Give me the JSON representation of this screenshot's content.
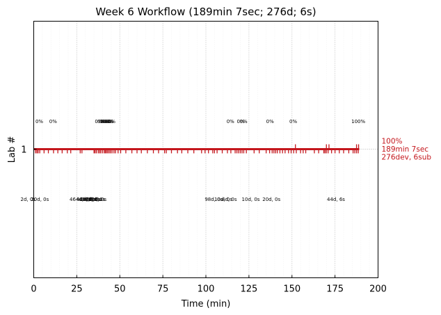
{
  "chart_data": {
    "type": "scatter",
    "title": "Week 6 Workflow (189min 7sec; 276d; 6s)",
    "xlabel": "Time (min)",
    "ylabel": "Lab #",
    "xlim": [
      0,
      200
    ],
    "x_ticks": [
      "0",
      "25",
      "50",
      "75",
      "100",
      "125",
      "150",
      "175",
      "200"
    ],
    "y_ticks": [
      "1"
    ],
    "grid": "vertical dotted every 25 min, faint minor lines every 5 min",
    "colors": {
      "series": "#c4161c",
      "grid": "#b0b0b0",
      "minor_grid": "#ececec"
    },
    "series": [
      {
        "lab": 1,
        "duration_min": 189.1,
        "dev_event_times": [
          1,
          1.8,
          2.5,
          3.5,
          6,
          8.5,
          11.5,
          14,
          16.5,
          19.5,
          21.5,
          27,
          28,
          35,
          35.6,
          36.4,
          37.5,
          38.3,
          39,
          40,
          41,
          41.6,
          42.3,
          43,
          43.8,
          44.6,
          45.5,
          46.6,
          47.5,
          49,
          50.5,
          53.5,
          57,
          60,
          62.5,
          66,
          69.5,
          72.5,
          76,
          77,
          80,
          83.5,
          86,
          89.5,
          93,
          97.5,
          99.5,
          101.5,
          104,
          105,
          106.5,
          109.5,
          112.5,
          114.5,
          117,
          118,
          119,
          120,
          121,
          122,
          123.5,
          128,
          131,
          135,
          137,
          138.5,
          139.5,
          140.5,
          141.5,
          143,
          144.5,
          146,
          148,
          149.5,
          151,
          152.5,
          155,
          156.5,
          158,
          163,
          165.5,
          168.5,
          169.2,
          170,
          171,
          173,
          175,
          177.5,
          180,
          183,
          185.5,
          186.5,
          187.5,
          188.5
        ],
        "submit_event_times": [
          152,
          170,
          171.5,
          187.5,
          188.7
        ]
      }
    ],
    "top_annotations": [
      {
        "x": 1,
        "text": "0%"
      },
      {
        "x": 9,
        "text": "0%"
      },
      {
        "x": 35.5,
        "text": "0%"
      },
      {
        "x": 37,
        "text": "0%"
      },
      {
        "x": 38,
        "text": "0%"
      },
      {
        "x": 38.8,
        "text": "0%"
      },
      {
        "x": 39.6,
        "text": "0%"
      },
      {
        "x": 40.4,
        "text": "0%"
      },
      {
        "x": 41.2,
        "text": "0%"
      },
      {
        "x": 42,
        "text": "0%"
      },
      {
        "x": 43,
        "text": "0%"
      },
      {
        "x": 112,
        "text": "0%"
      },
      {
        "x": 118,
        "text": "0%"
      },
      {
        "x": 119.6,
        "text": "0%"
      },
      {
        "x": 135,
        "text": "0%"
      },
      {
        "x": 148.5,
        "text": "0%"
      },
      {
        "x": 184.5,
        "text": "100%"
      }
    ],
    "bottom_annotations": [
      {
        "x": 0,
        "text": "2d, 0s"
      },
      {
        "x": 6,
        "text": "20d, 0s"
      },
      {
        "x": 28.5,
        "text": "464d, 0s"
      },
      {
        "x": 32.5,
        "text": "40d, 0s"
      },
      {
        "x": 34,
        "text": "48d, 0s"
      },
      {
        "x": 35,
        "text": "0d, 0s"
      },
      {
        "x": 36,
        "text": "22d, 0s"
      },
      {
        "x": 37.5,
        "text": "8d, 0s"
      },
      {
        "x": 38.5,
        "text": "6d, 0s"
      },
      {
        "x": 39.5,
        "text": "10d, 0s"
      },
      {
        "x": 40.5,
        "text": "4d, 0s"
      },
      {
        "x": 107,
        "text": "98d, 0s"
      },
      {
        "x": 112.5,
        "text": "10d, 0s"
      },
      {
        "x": 117,
        "text": "4d, 0s"
      },
      {
        "x": 128.5,
        "text": "10d, 0s"
      },
      {
        "x": 140.5,
        "text": "20d, 0s"
      },
      {
        "x": 178,
        "text": "44d, 6s"
      }
    ],
    "end_label": [
      "100%",
      "189min 7sec",
      "276dev, 6sub"
    ]
  }
}
